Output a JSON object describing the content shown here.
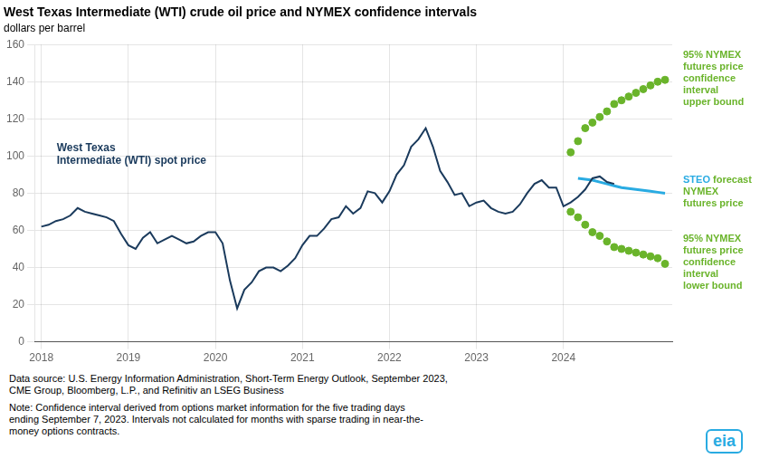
{
  "chart_data": {
    "type": "line",
    "title": "West Texas Intermediate (WTI) crude oil price and NYMEX confidence intervals",
    "subtitle": "dollars per barrel",
    "xlim": [
      2017.92,
      2025.25
    ],
    "xticks": [
      2018,
      2019,
      2020,
      2021,
      2022,
      2023,
      2024
    ],
    "ylim": [
      0,
      160
    ],
    "yticks": [
      0,
      20,
      40,
      60,
      80,
      100,
      120,
      140,
      160
    ],
    "grid": true,
    "series": [
      {
        "type": "line",
        "marker": "none",
        "line_style": "solid",
        "color": "#1a3a5c",
        "x": [
          2018.0,
          2018.083,
          2018.167,
          2018.25,
          2018.333,
          2018.417,
          2018.5,
          2018.583,
          2018.667,
          2018.75,
          2018.833,
          2018.917,
          2019.0,
          2019.083,
          2019.167,
          2019.25,
          2019.333,
          2019.417,
          2019.5,
          2019.583,
          2019.667,
          2019.75,
          2019.833,
          2019.917,
          2020.0,
          2020.083,
          2020.167,
          2020.25,
          2020.333,
          2020.417,
          2020.5,
          2020.583,
          2020.667,
          2020.75,
          2020.833,
          2020.917,
          2021.0,
          2021.083,
          2021.167,
          2021.25,
          2021.333,
          2021.417,
          2021.5,
          2021.583,
          2021.667,
          2021.75,
          2021.833,
          2021.917,
          2022.0,
          2022.083,
          2022.167,
          2022.25,
          2022.333,
          2022.417,
          2022.5,
          2022.583,
          2022.667,
          2022.75,
          2022.833,
          2022.917,
          2023.0,
          2023.083,
          2023.167,
          2023.25,
          2023.333,
          2023.417,
          2023.5,
          2023.583,
          2023.667,
          2023.75,
          2023.833,
          2023.917,
          2024.0,
          2024.083,
          2024.167,
          2024.25,
          2024.333,
          2024.417,
          2024.5,
          2024.583
        ],
        "values": [
          62,
          63,
          65,
          66,
          68,
          72,
          70,
          69,
          68,
          67,
          65,
          58,
          52,
          50,
          56,
          59,
          53,
          55,
          57,
          55,
          53,
          54,
          57,
          59,
          59,
          53,
          33,
          18,
          28,
          32,
          38,
          40,
          40,
          38,
          41,
          45,
          52,
          57,
          57,
          61,
          66,
          67,
          73,
          69,
          72,
          81,
          80,
          75,
          81,
          90,
          95,
          105,
          109,
          115,
          105,
          92,
          86,
          79,
          80,
          73,
          75,
          76,
          72,
          70,
          69,
          70,
          74,
          80,
          85,
          87,
          83,
          83,
          73,
          75,
          78,
          82,
          88,
          89,
          86,
          85
        ]
      },
      {
        "type": "line",
        "marker": "none",
        "line_style": "solid",
        "color": "#29abe2",
        "x": [
          2024.167,
          2024.25,
          2024.333,
          2024.417,
          2024.5,
          2024.583,
          2024.667,
          2024.75,
          2024.833,
          2024.917,
          2025.0,
          2025.083,
          2025.167
        ],
        "values": [
          88,
          87.5,
          87,
          86,
          85,
          84,
          83,
          82.5,
          82,
          81.5,
          81,
          80.5,
          80
        ]
      },
      {
        "type": "scatter",
        "marker": "circle",
        "color": "#6ab42b",
        "x": [
          2024.083,
          2024.167,
          2024.25,
          2024.333,
          2024.417,
          2024.5,
          2024.583,
          2024.667,
          2024.75,
          2024.833,
          2024.917,
          2025.0,
          2025.083,
          2025.167
        ],
        "values": [
          102,
          108,
          115,
          118,
          121,
          124,
          128,
          130,
          132,
          134,
          136,
          138,
          140,
          141
        ]
      },
      {
        "type": "scatter",
        "marker": "circle",
        "color": "#6ab42b",
        "x": [
          2024.083,
          2024.167,
          2024.25,
          2024.333,
          2024.417,
          2024.5,
          2024.583,
          2024.667,
          2024.75,
          2024.833,
          2024.917,
          2025.0,
          2025.083,
          2025.167
        ],
        "values": [
          70,
          67,
          63,
          59,
          57,
          54,
          51,
          50,
          49,
          48,
          47,
          46,
          45,
          42
        ]
      }
    ],
    "annotations": [
      {
        "series": 0,
        "runs": [
          {
            "text": "West Texas\nIntermediate (WTI) spot price",
            "color": "#1a3a5c"
          }
        ]
      },
      {
        "series": 2,
        "runs": [
          {
            "text": "95% NYMEX\nfutures price\nconfidence\ninterval\nupper bound",
            "color": "#6ab42b"
          }
        ]
      },
      {
        "series": 1,
        "runs": [
          {
            "text": "STEO",
            "color": "#29abe2"
          },
          {
            "text": " forecast\nNYMEX\nfutures price",
            "color": "#6ab42b"
          }
        ]
      },
      {
        "series": 3,
        "runs": [
          {
            "text": "95% NYMEX\nfutures price\nconfidence\ninterval\nlower bound",
            "color": "#6ab42b"
          }
        ]
      }
    ],
    "source": "Data source: U.S. Energy Information Administration, Short-Term Energy Outlook, September 2023,\nCME Group, Bloomberg, L.P., and Refinitiv an LSEG Business",
    "note": "Note: Confidence interval derived from options market information for the five trading days\nending September 7, 2023. Intervals not calculated for months with sparse trading in near-the-\nmoney options contracts.",
    "logo": {
      "text": "eia",
      "color": "#29abe2"
    }
  }
}
